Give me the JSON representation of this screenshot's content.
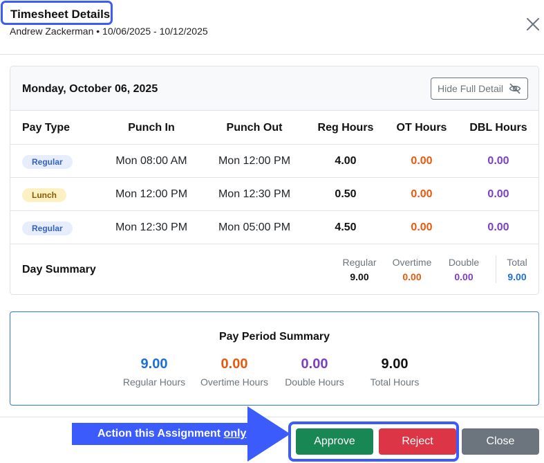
{
  "header": {
    "title": "Timesheet Details",
    "subtitle": "Andrew Zackerman • 10/06/2025 - 10/12/2025",
    "close_icon": "close-icon"
  },
  "day": {
    "title": "Monday, October 06, 2025",
    "hide_button_label": "Hide Full Detail",
    "hide_icon": "eye-slash-icon",
    "columns": [
      "Pay Type",
      "Punch In",
      "Punch Out",
      "Reg Hours",
      "OT Hours",
      "DBL Hours"
    ],
    "rows": [
      {
        "type": "Regular",
        "in": "Mon 08:00 AM",
        "out": "Mon 12:00 PM",
        "reg": "4.00",
        "ot": "0.00",
        "dbl": "0.00"
      },
      {
        "type": "Lunch",
        "in": "Mon 12:00 PM",
        "out": "Mon 12:30 PM",
        "reg": "0.50",
        "ot": "0.00",
        "dbl": "0.00"
      },
      {
        "type": "Regular",
        "in": "Mon 12:30 PM",
        "out": "Mon 05:00 PM",
        "reg": "4.50",
        "ot": "0.00",
        "dbl": "0.00"
      }
    ],
    "summary": {
      "title": "Day Summary",
      "regular_label": "Regular",
      "regular_value": "9.00",
      "overtime_label": "Overtime",
      "overtime_value": "0.00",
      "double_label": "Double",
      "double_value": "0.00",
      "total_label": "Total",
      "total_value": "9.00"
    }
  },
  "period": {
    "title": "Pay Period Summary",
    "regular_value": "9.00",
    "regular_label": "Regular Hours",
    "overtime_value": "0.00",
    "overtime_label": "Overtime Hours",
    "double_value": "0.00",
    "double_label": "Double Hours",
    "total_value": "9.00",
    "total_label": "Total Hours"
  },
  "footer": {
    "annotation_text": "Action this Assignment",
    "annotation_emphasis": "only",
    "approve_label": "Approve",
    "reject_label": "Reject",
    "close_label": "Close"
  },
  "colors": {
    "accent_blue": "#3b5bfd",
    "regular_blue": "#1a6fd8",
    "overtime_orange": "#e8590c",
    "double_purple": "#7b3fbf",
    "approve_green": "#198754",
    "reject_red": "#dc3545",
    "close_gray": "#6c757d"
  }
}
